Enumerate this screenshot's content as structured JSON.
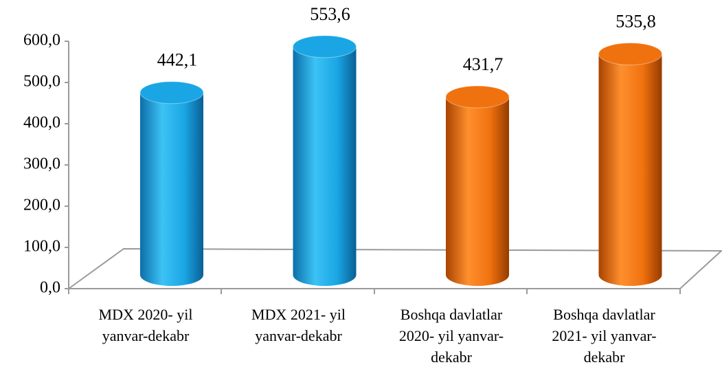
{
  "chart_data": {
    "type": "bar3d",
    "categories": [
      [
        "MDX 2020- yil",
        "yanvar-dekabr"
      ],
      [
        "MDX 2021- yil",
        "yanvar-dekabr"
      ],
      [
        "Boshqa davlatlar",
        "2020- yil yanvar-",
        "dekabr"
      ],
      [
        "Boshqa davlatlar",
        "2021- yil yanvar-",
        "dekabr"
      ]
    ],
    "values": [
      442.1,
      553.6,
      431.7,
      535.8
    ],
    "value_labels": [
      "442,1",
      "553,6",
      "431,7",
      "535,8"
    ],
    "colors": [
      "#1aa6e4",
      "#1aa6e4",
      "#f0720f",
      "#f0720f"
    ],
    "ylim": [
      0,
      600
    ],
    "yticks": [
      {
        "value": 0,
        "label": "0,0"
      },
      {
        "value": 100,
        "label": "100,0"
      },
      {
        "value": 200,
        "label": "200,0"
      },
      {
        "value": 300,
        "label": "300,0"
      },
      {
        "value": 400,
        "label": "400,0"
      },
      {
        "value": 500,
        "label": "500,0"
      },
      {
        "value": 600,
        "label": "600,0"
      }
    ]
  }
}
